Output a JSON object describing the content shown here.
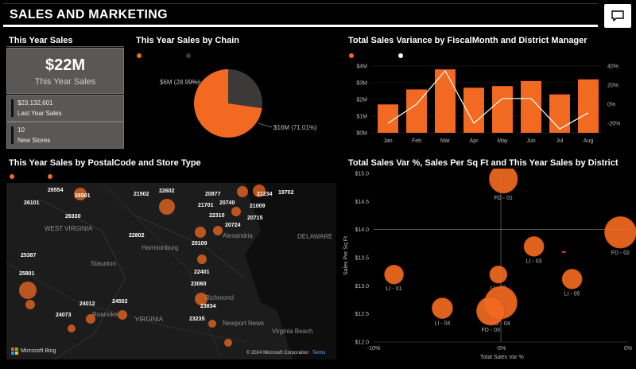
{
  "header": {
    "title": "SALES AND MARKETING",
    "chat_icon": "comment-icon"
  },
  "kpi": {
    "section_title": "This Year Sales",
    "main_value": "$22M",
    "main_label": "This Year Sales",
    "last_year_value": "$23,132,601",
    "last_year_label": "Last Year Sales",
    "new_stores_value": "10",
    "new_stores_label": "New Stores"
  },
  "pie": {
    "title": "This Year Sales by Chain",
    "slice_a_label": "$6M (28.99%)",
    "slice_b_label": "$16M (71.01%)"
  },
  "combo": {
    "title": "Total Sales Variance by FiscalMonth and District Manager",
    "yleft_ticks": [
      "$4M",
      "$3M",
      "$2M",
      "$1M",
      "$0M"
    ],
    "yright_ticks": [
      "40%",
      "20%",
      "0%",
      "-20%"
    ],
    "months": [
      "Jan",
      "Feb",
      "Mar",
      "Apr",
      "May",
      "Jun",
      "Jul",
      "Aug"
    ]
  },
  "map": {
    "title": "This Year Sales by PostalCode and Store Type",
    "zips": [
      "26554",
      "26501",
      "26101",
      "26330",
      "21502",
      "22602",
      "20877",
      "21234",
      "19702",
      "21701",
      "21009",
      "20740",
      "22310",
      "20715",
      "20724",
      "22802",
      "20109",
      "25387",
      "22401",
      "25801",
      "23060",
      "23834",
      "24012",
      "24502",
      "24073",
      "23235"
    ],
    "places": [
      "WEST VIRGINIA",
      "Harrisonburg",
      "Staunton",
      "Alexandria",
      "DELAWARE",
      "Richmond",
      "Roanoke",
      "VIRGINIA",
      "Newport News",
      "Virginia Beach"
    ],
    "bing": "Microsoft Bing",
    "copyright": "© 2024 Microsoft Corporation",
    "terms": "Terms"
  },
  "scatter": {
    "title": "Total Sales Var %, Sales Per Sq Ft and This Year Sales by District",
    "ylabel": "Sales Per Sq Ft",
    "xlabel": "Total Sales Var %",
    "yticks": [
      "$15.0",
      "$14.5",
      "$14.0",
      "$13.5",
      "$13.0",
      "$12.5",
      "$12.0"
    ],
    "xticks": [
      "-10%",
      "-5%",
      "0%"
    ],
    "point_labels": [
      "FD - 01",
      "FD - 02",
      "LI - 03",
      "LI - 02",
      "LI - 01",
      "FD - 04",
      "LI - 05",
      "LI - 04",
      "FD - 03"
    ]
  },
  "chart_data": [
    {
      "type": "pie",
      "title": "This Year Sales by Chain",
      "values": [
        6,
        16
      ],
      "percent": [
        28.99,
        71.01
      ],
      "colors": [
        "#3b3a39",
        "#f26921"
      ]
    },
    {
      "type": "bar",
      "title": "Total Sales Variance by FiscalMonth and District Manager",
      "categories": [
        "Jan",
        "Feb",
        "Mar",
        "Apr",
        "May",
        "Jun",
        "Jul",
        "Aug"
      ],
      "series": [
        {
          "values": [
            1.7,
            2.6,
            3.8,
            2.7,
            2.8,
            3.1,
            2.3,
            3.2
          ],
          "color": "#f26921"
        },
        {
          "values": [
            -20,
            0,
            35,
            -20,
            6,
            6,
            -26,
            -9
          ],
          "color": "#ffffff"
        }
      ],
      "ylim": [
        0,
        4
      ],
      "y2lim": [
        -30,
        40
      ]
    },
    {
      "type": "scatter",
      "title": "Total Sales Var %, Sales Per Sq Ft and This Year Sales by District",
      "xlim": [
        -10,
        0
      ],
      "ylim": [
        12,
        15
      ],
      "points": [
        {
          "label": "FD - 01",
          "x": -4.9,
          "y": 14.9,
          "size": 2.6
        },
        {
          "label": "FD - 02",
          "x": -0.3,
          "y": 13.95,
          "size": 3.0
        },
        {
          "label": "LI - 03",
          "x": -3.7,
          "y": 13.7,
          "size": 1.6
        },
        {
          "label": "LI - 02",
          "x": -5.1,
          "y": 13.2,
          "size": 1.3
        },
        {
          "label": "LI - 01",
          "x": -9.2,
          "y": 13.2,
          "size": 1.5
        },
        {
          "label": "FD - 04",
          "x": -5.0,
          "y": 12.7,
          "size": 3.1
        },
        {
          "label": "LI - 05",
          "x": -2.2,
          "y": 13.12,
          "size": 1.6
        },
        {
          "label": "LI - 04",
          "x": -7.3,
          "y": 12.6,
          "size": 1.7
        },
        {
          "label": "FD - 03",
          "x": -5.4,
          "y": 12.55,
          "size": 2.6
        }
      ]
    }
  ],
  "colors": {
    "accent": "#f26921",
    "dark": "#3b3a39",
    "card": "#5a5857"
  }
}
